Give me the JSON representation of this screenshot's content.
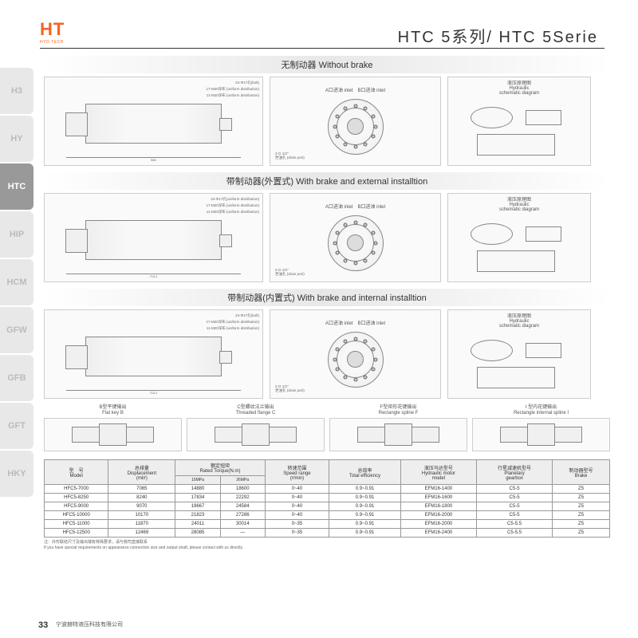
{
  "logo": {
    "main": "HT",
    "sub": "HYD-TECH"
  },
  "title": "HTC 5系列/ HTC 5Serie",
  "sidebar": [
    {
      "label": "H3",
      "active": false
    },
    {
      "label": "HY",
      "active": false
    },
    {
      "label": "HTC",
      "active": true
    },
    {
      "label": "HIP",
      "active": false
    },
    {
      "label": "HCM",
      "active": false
    },
    {
      "label": "GFW",
      "active": false
    },
    {
      "label": "GFB",
      "active": false
    },
    {
      "label": "GFT",
      "active": false
    },
    {
      "label": "HKY",
      "active": false
    }
  ],
  "sections": [
    {
      "title": "无制动器 Without brake",
      "side_dims": {
        "total": "580",
        "mid": "170",
        "inner": "120"
      },
      "callouts": [
        "24-Φ17孔(bolt)",
        "17-M20深布 (uniform distribution)",
        "11-M20深布 (uniform distribution)"
      ],
      "front_labels": {
        "a": "A口进油 inlet",
        "b": "B口进油 inlet",
        "drain": "2-G 1/2\"\\n泄油孔 (drain port)"
      },
      "schema_title": "液压原理图\\nHydraulic\\nschematic diagram"
    },
    {
      "title": "带制动器(外置式) With brake and external installtion",
      "side_dims": {
        "total": "713.2",
        "a": "120",
        "b": "170",
        "c": "120"
      },
      "callouts": [
        "24-Φ17孔(uniform distribution)",
        "17-M20深布 (uniform distribution)",
        "11-M20深布 (uniform distribution)"
      ],
      "front_labels": {
        "a": "A口进油 inlet",
        "b": "B口进油 inlet",
        "drain": "2-G 1/2\"\\n泄油孔 (drain port)"
      },
      "schema_title": "液压原理图\\nHydraulic\\nschematic diagram"
    },
    {
      "title": "带制动器(内置式) With brake and internal installtion",
      "side_dims": {
        "total": "713.2",
        "a": "170",
        "b": "120"
      },
      "callouts": [
        "24-Φ17孔(bolt)",
        "17-M20深布 (uniform distribution)",
        "11-M20深布 (uniform distribution)",
        "Φ405.1",
        "Φ447±0.5"
      ],
      "front_labels": {
        "a": "A口进油 inlet",
        "b": "B口进油 inlet",
        "drain": "2-G 1/2\"\\n泄油孔 (drain port)"
      },
      "schema_title": "液压原理图\\nHydraulic\\nschematic diagram"
    }
  ],
  "shafts": [
    {
      "title_cn": "B型平键输出",
      "title_en": "Flat key B",
      "dims": [
        "165",
        "Φ100",
        "2-M10",
        "59",
        "28"
      ]
    },
    {
      "title_cn": "C型螺纹法兰输出",
      "title_en": "Threaded flange C",
      "dims": [
        "17-M20深布 (uniform distribution)",
        "11-M20深布 (uniform distribution)",
        "88",
        "58"
      ]
    },
    {
      "title_cn": "F型矩形花键输出",
      "title_en": "Rectangle spline F",
      "dims": [
        "10-140|11×160|11×22h|",
        "Φ160"
      ]
    },
    {
      "title_cn": "I 型内花键输出",
      "title_en": "Rectangle internal spline I",
      "dims": [
        "10-140|11×160|11×22h|8"
      ]
    }
  ],
  "table": {
    "headers": {
      "model": "型　号\\nModel",
      "disp": "总排量\\nDisplacement\\n(ml/r)",
      "torque": "额定扭矩\\nRated Torque(N.m)",
      "torque_sub": [
        "16MPa",
        "26MPa"
      ],
      "speed": "转速范围\\nSpeed range\\n(r/min)",
      "eff": "总效率\\nTotal efficiency",
      "motor": "液压马达型号\\nHydraulic motor\\nmodel",
      "gearbox": "行星减速机型号\\nPlanetary\\ngearbox",
      "brake": "制动器型号\\nBrake"
    },
    "rows": [
      {
        "model": "HFC5-7000",
        "disp": "7065",
        "t16": "14880",
        "t26": "18600",
        "speed": "0~40",
        "eff": "0.9~0.91",
        "motor": "EFM16-1400",
        "gearbox": "C5-5",
        "brake": "Z5"
      },
      {
        "model": "HFC5-8250",
        "disp": "8240",
        "t16": "17834",
        "t26": "22292",
        "speed": "0~40",
        "eff": "0.9~0.91",
        "motor": "EFM16-1600",
        "gearbox": "C5-5",
        "brake": "Z5"
      },
      {
        "model": "HFC5-9000",
        "disp": "9070",
        "t16": "19667",
        "t26": "24584",
        "speed": "0~40",
        "eff": "0.9~0.91",
        "motor": "EFM16-1800",
        "gearbox": "C5-5",
        "brake": "Z5"
      },
      {
        "model": "HFC5-10000",
        "disp": "10170",
        "t16": "21823",
        "t26": "27286",
        "speed": "0~40",
        "eff": "0.9~0.91",
        "motor": "EFM16-2000",
        "gearbox": "C5-5",
        "brake": "Z5"
      },
      {
        "model": "HFC5-11000",
        "disp": "11870",
        "t16": "24011",
        "t26": "30014",
        "speed": "0~35",
        "eff": "0.9~0.91",
        "motor": "EFM16-2000",
        "gearbox": "C5-5.5",
        "brake": "Z5"
      },
      {
        "model": "HFC5-12500",
        "disp": "12469",
        "t16": "28085",
        "t26": "—",
        "speed": "0~35",
        "eff": "0.9~0.91",
        "motor": "EFM16-2400",
        "gearbox": "C5-5.5",
        "brake": "Z5"
      }
    ]
  },
  "footnote": "注：外形联结尺寸及输出端有特殊要求，请与我司直接联系\\nIf you have special requirements on appearance connection size and output shaft, please contact with us directly.",
  "pagenum": "33",
  "footer": "宁波赫特液压科技有限公司"
}
